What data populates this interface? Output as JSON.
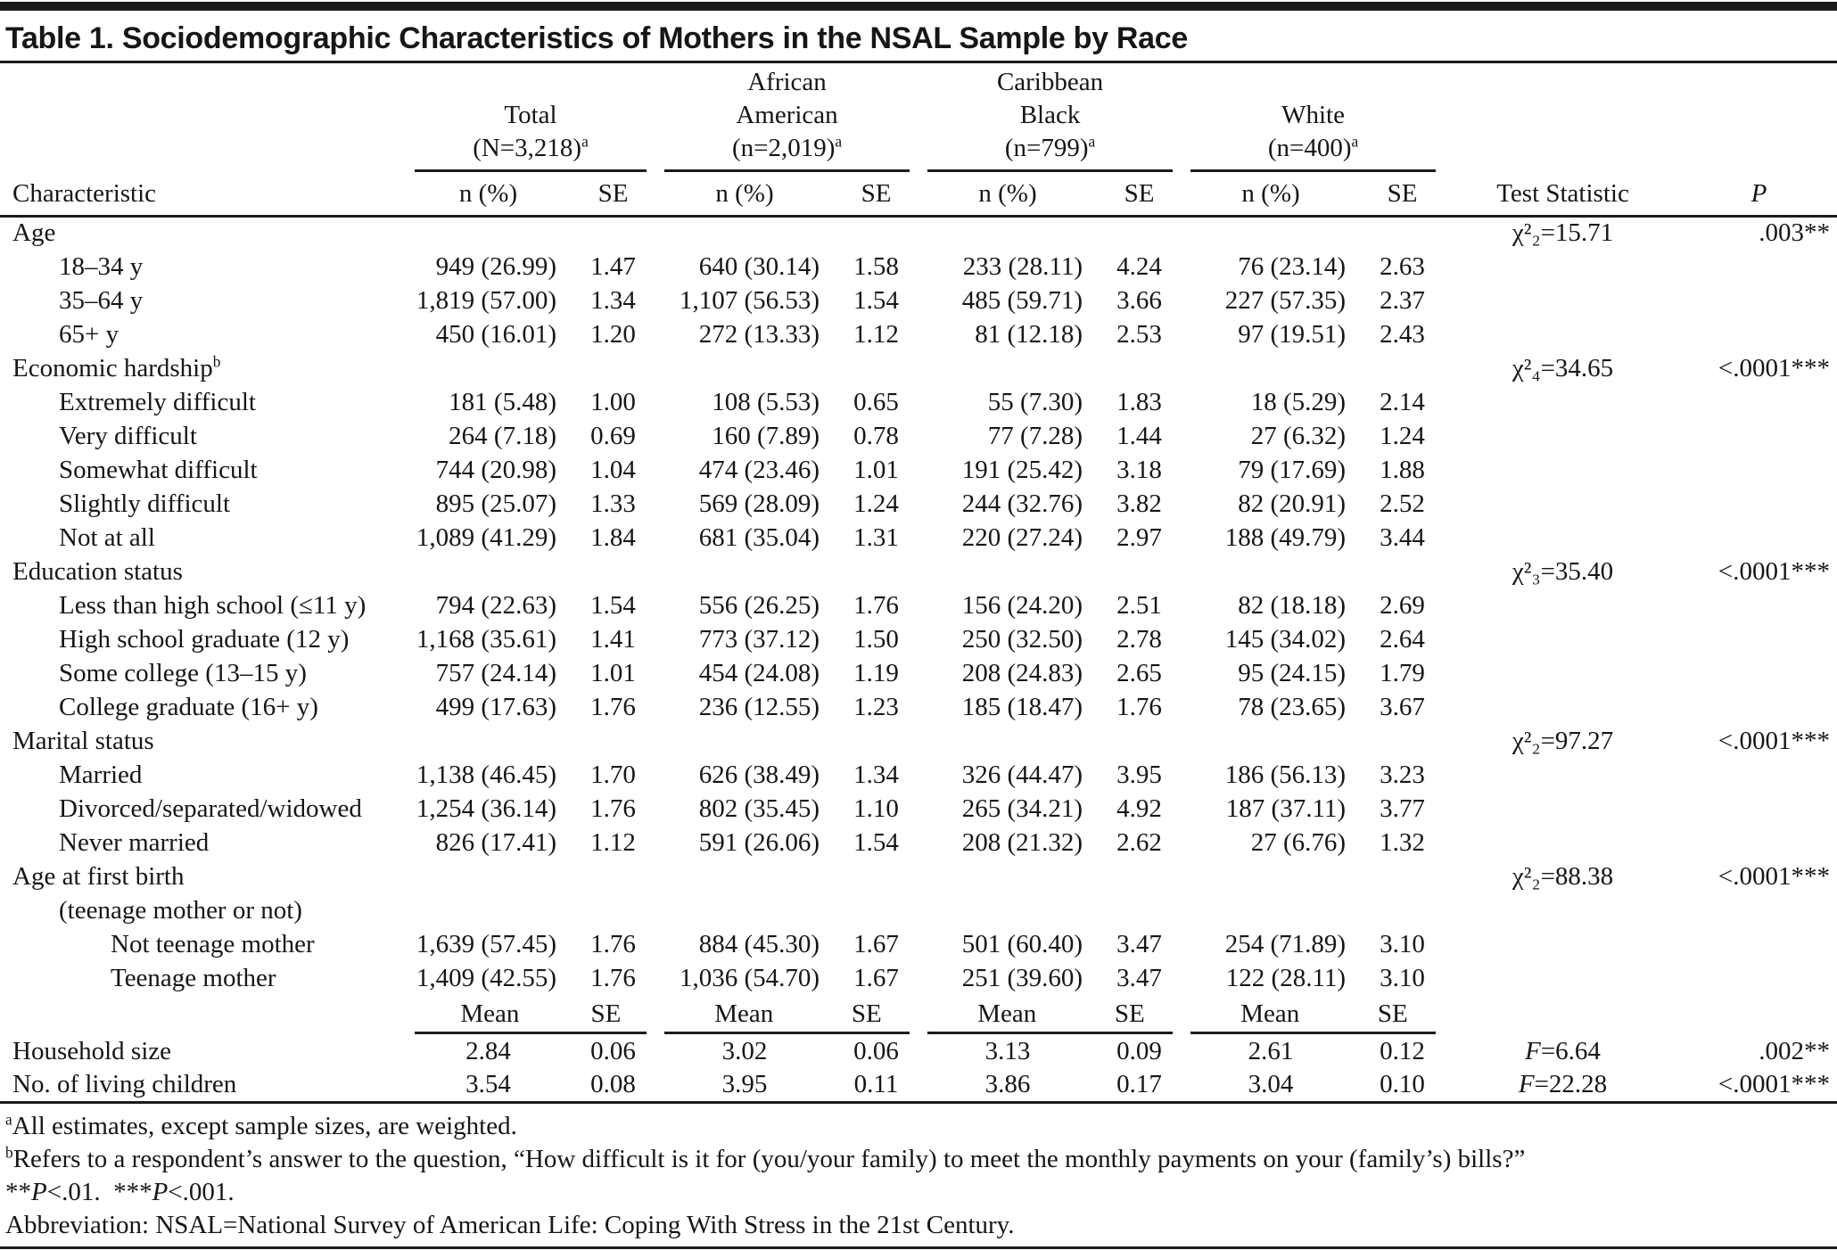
{
  "title": "Table 1. Sociodemographic Characteristics of Mothers in the NSAL Sample by Race",
  "columns": {
    "characteristic": "Characteristic",
    "n_pct": "n (%)",
    "se": "SE",
    "test_statistic": "Test Statistic",
    "p": "P",
    "mean": "Mean"
  },
  "groups": [
    {
      "lines": [
        "Total",
        "(N=3,218)"
      ],
      "sup": "a"
    },
    {
      "lines": [
        "African",
        "American",
        "(n=2,019)"
      ],
      "sup": "a"
    },
    {
      "lines": [
        "Caribbean",
        "Black",
        "(n=799)"
      ],
      "sup": "a"
    },
    {
      "lines": [
        "White",
        "(n=400)"
      ],
      "sup": "a"
    }
  ],
  "sections": [
    {
      "label": "Age",
      "sup": "",
      "test": "χ²₂=15.71",
      "p": ".003**",
      "rows": [
        {
          "label": "18–34 y",
          "indent": 1,
          "values": [
            "949 (26.99)",
            "1.47",
            "640 (30.14)",
            "1.58",
            "233 (28.11)",
            "4.24",
            "76 (23.14)",
            "2.63"
          ]
        },
        {
          "label": "35–64 y",
          "indent": 1,
          "values": [
            "1,819 (57.00)",
            "1.34",
            "1,107 (56.53)",
            "1.54",
            "485 (59.71)",
            "3.66",
            "227 (57.35)",
            "2.37"
          ]
        },
        {
          "label": "65+ y",
          "indent": 1,
          "values": [
            "450 (16.01)",
            "1.20",
            "272 (13.33)",
            "1.12",
            "81 (12.18)",
            "2.53",
            "97 (19.51)",
            "2.43"
          ]
        }
      ]
    },
    {
      "label": "Economic hardship",
      "sup": "b",
      "test": "χ²₄=34.65",
      "p": "<.0001***",
      "rows": [
        {
          "label": "Extremely difficult",
          "indent": 1,
          "values": [
            "181 (5.48)",
            "1.00",
            "108 (5.53)",
            "0.65",
            "55 (7.30)",
            "1.83",
            "18 (5.29)",
            "2.14"
          ]
        },
        {
          "label": "Very difficult",
          "indent": 1,
          "values": [
            "264 (7.18)",
            "0.69",
            "160 (7.89)",
            "0.78",
            "77 (7.28)",
            "1.44",
            "27 (6.32)",
            "1.24"
          ]
        },
        {
          "label": "Somewhat difficult",
          "indent": 1,
          "values": [
            "744 (20.98)",
            "1.04",
            "474 (23.46)",
            "1.01",
            "191 (25.42)",
            "3.18",
            "79 (17.69)",
            "1.88"
          ]
        },
        {
          "label": "Slightly difficult",
          "indent": 1,
          "values": [
            "895 (25.07)",
            "1.33",
            "569 (28.09)",
            "1.24",
            "244 (32.76)",
            "3.82",
            "82 (20.91)",
            "2.52"
          ]
        },
        {
          "label": "Not at all",
          "indent": 1,
          "values": [
            "1,089 (41.29)",
            "1.84",
            "681 (35.04)",
            "1.31",
            "220 (27.24)",
            "2.97",
            "188 (49.79)",
            "3.44"
          ]
        }
      ]
    },
    {
      "label": "Education status",
      "sup": "",
      "test": "χ²₃=35.40",
      "p": "<.0001***",
      "rows": [
        {
          "label": "Less than high school (≤11 y)",
          "indent": 1,
          "values": [
            "794 (22.63)",
            "1.54",
            "556 (26.25)",
            "1.76",
            "156 (24.20)",
            "2.51",
            "82 (18.18)",
            "2.69"
          ]
        },
        {
          "label": "High school graduate (12 y)",
          "indent": 1,
          "values": [
            "1,168 (35.61)",
            "1.41",
            "773 (37.12)",
            "1.50",
            "250 (32.50)",
            "2.78",
            "145 (34.02)",
            "2.64"
          ]
        },
        {
          "label": "Some college (13–15 y)",
          "indent": 1,
          "values": [
            "757 (24.14)",
            "1.01",
            "454 (24.08)",
            "1.19",
            "208 (24.83)",
            "2.65",
            "95 (24.15)",
            "1.79"
          ]
        },
        {
          "label": "College graduate (16+ y)",
          "indent": 1,
          "values": [
            "499 (17.63)",
            "1.76",
            "236 (12.55)",
            "1.23",
            "185 (18.47)",
            "1.76",
            "78 (23.65)",
            "3.67"
          ]
        }
      ]
    },
    {
      "label": "Marital status",
      "sup": "",
      "test": "χ²₂=97.27",
      "p": "<.0001***",
      "rows": [
        {
          "label": "Married",
          "indent": 1,
          "values": [
            "1,138 (46.45)",
            "1.70",
            "626 (38.49)",
            "1.34",
            "326 (44.47)",
            "3.95",
            "186 (56.13)",
            "3.23"
          ]
        },
        {
          "label": "Divorced/separated/widowed",
          "indent": 1,
          "values": [
            "1,254 (36.14)",
            "1.76",
            "802 (35.45)",
            "1.10",
            "265 (34.21)",
            "4.92",
            "187 (37.11)",
            "3.77"
          ]
        },
        {
          "label": "Never married",
          "indent": 1,
          "values": [
            "826 (17.41)",
            "1.12",
            "591 (26.06)",
            "1.54",
            "208 (21.32)",
            "2.62",
            "27 (6.76)",
            "1.32"
          ]
        }
      ]
    },
    {
      "label": "Age at first birth",
      "sup": "",
      "test": "χ²₂=88.38",
      "p": "<.0001***",
      "rows": [
        {
          "label": "(teenage mother or not)",
          "indent": 1,
          "values": []
        },
        {
          "label": "Not teenage mother",
          "indent": 2,
          "values": [
            "1,639 (57.45)",
            "1.76",
            "884 (45.30)",
            "1.67",
            "501 (60.40)",
            "3.47",
            "254 (71.89)",
            "3.10"
          ]
        },
        {
          "label": "Teenage mother",
          "indent": 2,
          "values": [
            "1,409 (42.55)",
            "1.76",
            "1,036 (54.70)",
            "1.67",
            "251 (39.60)",
            "3.47",
            "122 (28.11)",
            "3.10"
          ]
        }
      ]
    }
  ],
  "mean_rows": [
    {
      "label": "Household size",
      "values": [
        "2.84",
        "0.06",
        "3.02",
        "0.06",
        "3.13",
        "0.09",
        "2.61",
        "0.12"
      ],
      "test": "F=6.64",
      "p": ".002**"
    },
    {
      "label": "No. of living children",
      "values": [
        "3.54",
        "0.08",
        "3.95",
        "0.11",
        "3.86",
        "0.17",
        "3.04",
        "0.10"
      ],
      "test": "F=22.28",
      "p": "<.0001***"
    }
  ],
  "footnotes": [
    {
      "sup": "a",
      "text": "All estimates, except sample sizes, are weighted."
    },
    {
      "sup": "b",
      "text": "Refers to a respondent’s answer to the question, “How difficult is it for (you/your family) to meet the monthly payments on your (family’s) bills?”"
    },
    {
      "sup": "",
      "text": "**P<.01.  ***P<.001."
    },
    {
      "sup": "",
      "text": "Abbreviation: NSAL=National Survey of American Life: Coping With Stress in the 21st Century."
    }
  ]
}
